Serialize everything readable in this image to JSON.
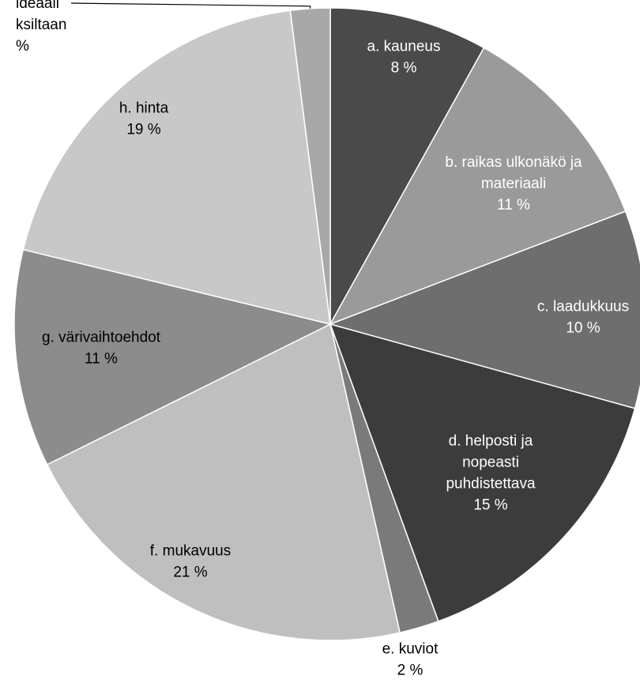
{
  "chart_data": {
    "type": "pie",
    "title": "",
    "slices": [
      {
        "name": "a. kauneus",
        "value": 8,
        "value_label": "8 %",
        "color": "#4a4a4a",
        "label_color": "#ffffff"
      },
      {
        "name": "b. raikas ulkonäkö ja materiaali",
        "label_lines": [
          "b. raikas ulkonäkö ja",
          "materiaali"
        ],
        "value": 11,
        "value_label": "11 %",
        "color": "#9a9a9a",
        "label_color": "#ffffff"
      },
      {
        "name": "c. laadukkuus",
        "value": 10,
        "value_label": "10 %",
        "color": "#6e6e6e",
        "label_color": "#ffffff"
      },
      {
        "name": "d. helposti ja nopeasti puhdistettava",
        "label_lines": [
          "d. helposti ja",
          "nopeasti",
          "puhdistettava"
        ],
        "value": 15,
        "value_label": "15 %",
        "color": "#3c3c3c",
        "label_color": "#ffffff"
      },
      {
        "name": "e. kuviot",
        "value": 2,
        "value_label": "2 %",
        "color": "#7a7a7a",
        "label_color": "#000000",
        "outside": true
      },
      {
        "name": "f. mukavuus",
        "value": 21,
        "value_label": "21 %",
        "color": "#bfbfbf",
        "label_color": "#000000"
      },
      {
        "name": "g. värivaihtoehdot",
        "value": 11,
        "value_label": "11 %",
        "color": "#8c8c8c",
        "label_color": "#000000"
      },
      {
        "name": "h. hinta",
        "value": 19,
        "value_label": "19 %",
        "color": "#c8c8c8",
        "label_color": "#000000"
      },
      {
        "name": "ideaali ...ksiltaan",
        "label_lines": [
          "ideaali",
          "ksiltaan"
        ],
        "value": 2,
        "value_label": "%",
        "color": "#a8a8a8",
        "label_color": "#000000",
        "outside": true,
        "leader": true
      }
    ]
  }
}
